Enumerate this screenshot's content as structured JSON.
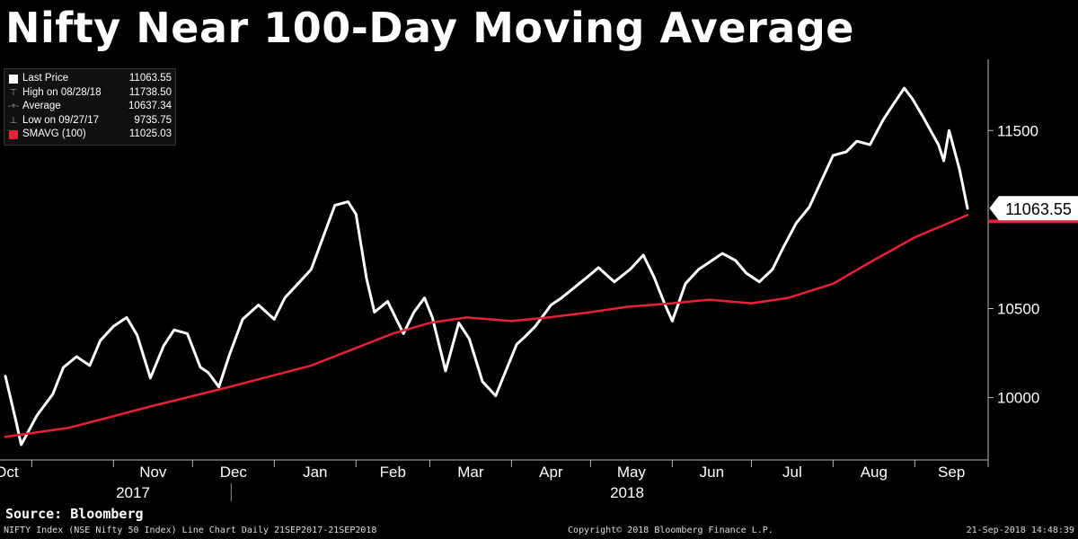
{
  "title": "Nifty Near 100-Day Moving Average",
  "legend": [
    {
      "symbol": "white-square",
      "label": "Last Price",
      "value": "11063.55"
    },
    {
      "symbol": "high-marker",
      "label": "High on 08/28/18",
      "value": "11738.50"
    },
    {
      "symbol": "average-marker",
      "label": "Average",
      "value": "10637.34"
    },
    {
      "symbol": "low-marker",
      "label": "Low on 09/27/17",
      "value": "9735.75"
    },
    {
      "symbol": "red-square",
      "label": "SMAVG (100)",
      "value": "11025.03"
    }
  ],
  "last_price_label": "11063.55",
  "footer": {
    "source": "Source: Bloomberg",
    "left": "NIFTY Index (NSE Nifty 50 Index) Line Chart  Daily 21SEP2017-21SEP2018",
    "center": "Copyright© 2018 Bloomberg Finance L.P.",
    "right": "21-Sep-2018 14:48:39"
  },
  "colors": {
    "background": "#000000",
    "price_line": "#ffffff",
    "sma_line": "#e8203a"
  },
  "chart_data": {
    "type": "line",
    "ylim": [
      9650,
      11900
    ],
    "yticks": [
      10000,
      10500,
      11500
    ],
    "ytick_labels": [
      "10000",
      "10500",
      "11500"
    ],
    "month_labels": [
      "Oct",
      "Nov",
      "Dec",
      "Jan",
      "Feb",
      "Mar",
      "Apr",
      "May",
      "Jun",
      "Jul",
      "Aug",
      "Sep"
    ],
    "year_labels": [
      "2017",
      "2018"
    ],
    "grid": false,
    "legend_position": "top-left",
    "series": [
      {
        "name": "Last Price",
        "color": "#ffffff",
        "points": [
          [
            "2017-09-21",
            10120
          ],
          [
            "2017-09-25",
            9870
          ],
          [
            "2017-09-27",
            9736
          ],
          [
            "2017-10-03",
            9900
          ],
          [
            "2017-10-09",
            10020
          ],
          [
            "2017-10-13",
            10170
          ],
          [
            "2017-10-18",
            10230
          ],
          [
            "2017-10-23",
            10180
          ],
          [
            "2017-10-27",
            10320
          ],
          [
            "2017-11-01",
            10400
          ],
          [
            "2017-11-06",
            10450
          ],
          [
            "2017-11-10",
            10350
          ],
          [
            "2017-11-15",
            10110
          ],
          [
            "2017-11-20",
            10290
          ],
          [
            "2017-11-24",
            10380
          ],
          [
            "2017-11-29",
            10360
          ],
          [
            "2017-12-04",
            10170
          ],
          [
            "2017-12-07",
            10140
          ],
          [
            "2017-12-11",
            10060
          ],
          [
            "2017-12-15",
            10240
          ],
          [
            "2017-12-20",
            10440
          ],
          [
            "2017-12-26",
            10520
          ],
          [
            "2018-01-01",
            10440
          ],
          [
            "2018-01-05",
            10560
          ],
          [
            "2018-01-10",
            10640
          ],
          [
            "2018-01-15",
            10720
          ],
          [
            "2018-01-19",
            10880
          ],
          [
            "2018-01-24",
            11080
          ],
          [
            "2018-01-29",
            11100
          ],
          [
            "2018-02-01",
            11030
          ],
          [
            "2018-02-05",
            10670
          ],
          [
            "2018-02-08",
            10480
          ],
          [
            "2018-02-13",
            10540
          ],
          [
            "2018-02-19",
            10360
          ],
          [
            "2018-02-23",
            10480
          ],
          [
            "2018-02-27",
            10560
          ],
          [
            "2018-03-02",
            10450
          ],
          [
            "2018-03-07",
            10150
          ],
          [
            "2018-03-12",
            10420
          ],
          [
            "2018-03-16",
            10330
          ],
          [
            "2018-03-21",
            10090
          ],
          [
            "2018-03-26",
            10010
          ],
          [
            "2018-03-29",
            10120
          ],
          [
            "2018-04-03",
            10300
          ],
          [
            "2018-04-06",
            10340
          ],
          [
            "2018-04-10",
            10400
          ],
          [
            "2018-04-16",
            10520
          ],
          [
            "2018-04-20",
            10560
          ],
          [
            "2018-04-25",
            10620
          ],
          [
            "2018-04-30",
            10680
          ],
          [
            "2018-05-04",
            10730
          ],
          [
            "2018-05-10",
            10650
          ],
          [
            "2018-05-16",
            10720
          ],
          [
            "2018-05-21",
            10800
          ],
          [
            "2018-05-25",
            10680
          ],
          [
            "2018-05-29",
            10530
          ],
          [
            "2018-06-01",
            10430
          ],
          [
            "2018-06-06",
            10640
          ],
          [
            "2018-06-11",
            10720
          ],
          [
            "2018-06-15",
            10760
          ],
          [
            "2018-06-20",
            10810
          ],
          [
            "2018-06-25",
            10770
          ],
          [
            "2018-06-29",
            10700
          ],
          [
            "2018-07-04",
            10650
          ],
          [
            "2018-07-09",
            10720
          ],
          [
            "2018-07-13",
            10840
          ],
          [
            "2018-07-18",
            10980
          ],
          [
            "2018-07-23",
            11070
          ],
          [
            "2018-07-27",
            11200
          ],
          [
            "2018-08-01",
            11360
          ],
          [
            "2018-08-06",
            11380
          ],
          [
            "2018-08-10",
            11440
          ],
          [
            "2018-08-15",
            11420
          ],
          [
            "2018-08-20",
            11560
          ],
          [
            "2018-08-24",
            11650
          ],
          [
            "2018-08-28",
            11738
          ],
          [
            "2018-08-31",
            11680
          ],
          [
            "2018-09-04",
            11580
          ],
          [
            "2018-09-07",
            11500
          ],
          [
            "2018-09-10",
            11420
          ],
          [
            "2018-09-12",
            11330
          ],
          [
            "2018-09-14",
            11500
          ],
          [
            "2018-09-18",
            11280
          ],
          [
            "2018-09-21",
            11063
          ]
        ]
      },
      {
        "name": "SMAVG (100)",
        "color": "#e8203a",
        "points": [
          [
            "2017-09-21",
            9780
          ],
          [
            "2017-10-15",
            9830
          ],
          [
            "2017-11-15",
            9950
          ],
          [
            "2017-12-15",
            10060
          ],
          [
            "2018-01-15",
            10180
          ],
          [
            "2018-02-15",
            10360
          ],
          [
            "2018-03-01",
            10420
          ],
          [
            "2018-03-15",
            10450
          ],
          [
            "2018-04-01",
            10430
          ],
          [
            "2018-04-15",
            10450
          ],
          [
            "2018-05-01",
            10480
          ],
          [
            "2018-05-15",
            10510
          ],
          [
            "2018-06-01",
            10530
          ],
          [
            "2018-06-15",
            10550
          ],
          [
            "2018-07-01",
            10530
          ],
          [
            "2018-07-15",
            10560
          ],
          [
            "2018-08-01",
            10640
          ],
          [
            "2018-08-15",
            10760
          ],
          [
            "2018-09-01",
            10900
          ],
          [
            "2018-09-21",
            11025
          ]
        ]
      }
    ]
  }
}
